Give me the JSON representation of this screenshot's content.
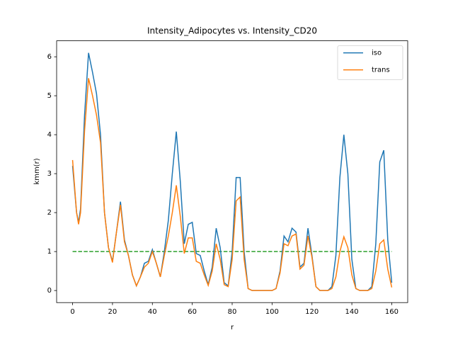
{
  "chart_data": {
    "type": "line",
    "title": "Intensity_Adipocytes vs. Intensity_CD20",
    "xlabel": "r",
    "ylabel": "kmm(r)",
    "x": [
      0,
      2,
      3,
      4,
      6,
      8,
      10,
      12,
      14,
      16,
      18,
      20,
      22,
      24,
      26,
      28,
      30,
      32,
      34,
      36,
      38,
      40,
      42,
      44,
      46,
      48,
      50,
      52,
      54,
      56,
      58,
      60,
      62,
      64,
      66,
      68,
      70,
      72,
      74,
      76,
      78,
      80,
      82,
      84,
      86,
      88,
      90,
      92,
      94,
      96,
      98,
      100,
      102,
      104,
      106,
      108,
      110,
      112,
      114,
      116,
      118,
      120,
      122,
      124,
      126,
      128,
      130,
      132,
      134,
      136,
      138,
      140,
      142,
      144,
      146,
      148,
      150,
      152,
      154,
      156,
      158,
      160
    ],
    "series": [
      {
        "name": "iso",
        "color": "#1f77b4",
        "values": [
          3.2,
          2.0,
          1.75,
          2.1,
          4.5,
          6.1,
          5.6,
          5.05,
          4.0,
          2.0,
          1.1,
          0.75,
          1.5,
          2.28,
          1.3,
          0.9,
          0.4,
          0.12,
          0.35,
          0.7,
          0.75,
          1.05,
          0.7,
          0.35,
          1.0,
          1.8,
          3.0,
          4.08,
          2.8,
          1.2,
          1.7,
          1.75,
          0.95,
          0.9,
          0.5,
          0.15,
          0.6,
          1.6,
          1.1,
          0.2,
          0.12,
          1.0,
          2.9,
          2.9,
          1.0,
          0.05,
          0,
          0,
          0,
          0,
          0,
          0,
          0.05,
          0.5,
          1.4,
          1.25,
          1.6,
          1.5,
          0.6,
          0.7,
          1.6,
          0.9,
          0.1,
          0,
          0,
          0,
          0.1,
          0.9,
          2.9,
          4.0,
          3.0,
          0.8,
          0.05,
          0,
          0,
          0,
          0.1,
          1.2,
          3.3,
          3.6,
          1.3,
          0.2
        ]
      },
      {
        "name": "trans",
        "color": "#ff7f0e",
        "values": [
          3.35,
          2.0,
          1.7,
          2.0,
          4.1,
          5.45,
          5.0,
          4.5,
          3.8,
          2.0,
          1.1,
          0.72,
          1.5,
          2.2,
          1.25,
          0.9,
          0.4,
          0.12,
          0.35,
          0.6,
          0.7,
          1.0,
          0.7,
          0.35,
          0.9,
          1.4,
          2.0,
          2.7,
          1.9,
          0.95,
          1.35,
          1.35,
          0.75,
          0.7,
          0.4,
          0.13,
          0.5,
          1.2,
          0.8,
          0.15,
          0.1,
          0.8,
          2.3,
          2.4,
          0.8,
          0.05,
          0,
          0,
          0,
          0,
          0,
          0,
          0.05,
          0.45,
          1.2,
          1.15,
          1.4,
          1.45,
          0.55,
          0.65,
          1.4,
          0.85,
          0.1,
          0,
          0,
          0,
          0.05,
          0.35,
          1.0,
          1.38,
          1.1,
          0.4,
          0.05,
          0,
          0,
          0,
          0.05,
          0.5,
          1.2,
          1.3,
          0.55,
          0.08
        ]
      }
    ],
    "reference": {
      "x": [
        0,
        160
      ],
      "values": [
        1,
        1
      ],
      "color": "#2ca02c",
      "style": "dashed"
    },
    "xlim": [
      -8,
      168
    ],
    "ylim": [
      -0.31,
      6.41
    ],
    "xticks": [
      0,
      20,
      40,
      60,
      80,
      100,
      120,
      140,
      160
    ],
    "yticks": [
      0,
      1,
      2,
      3,
      4,
      5,
      6
    ],
    "legend": "upper right"
  }
}
